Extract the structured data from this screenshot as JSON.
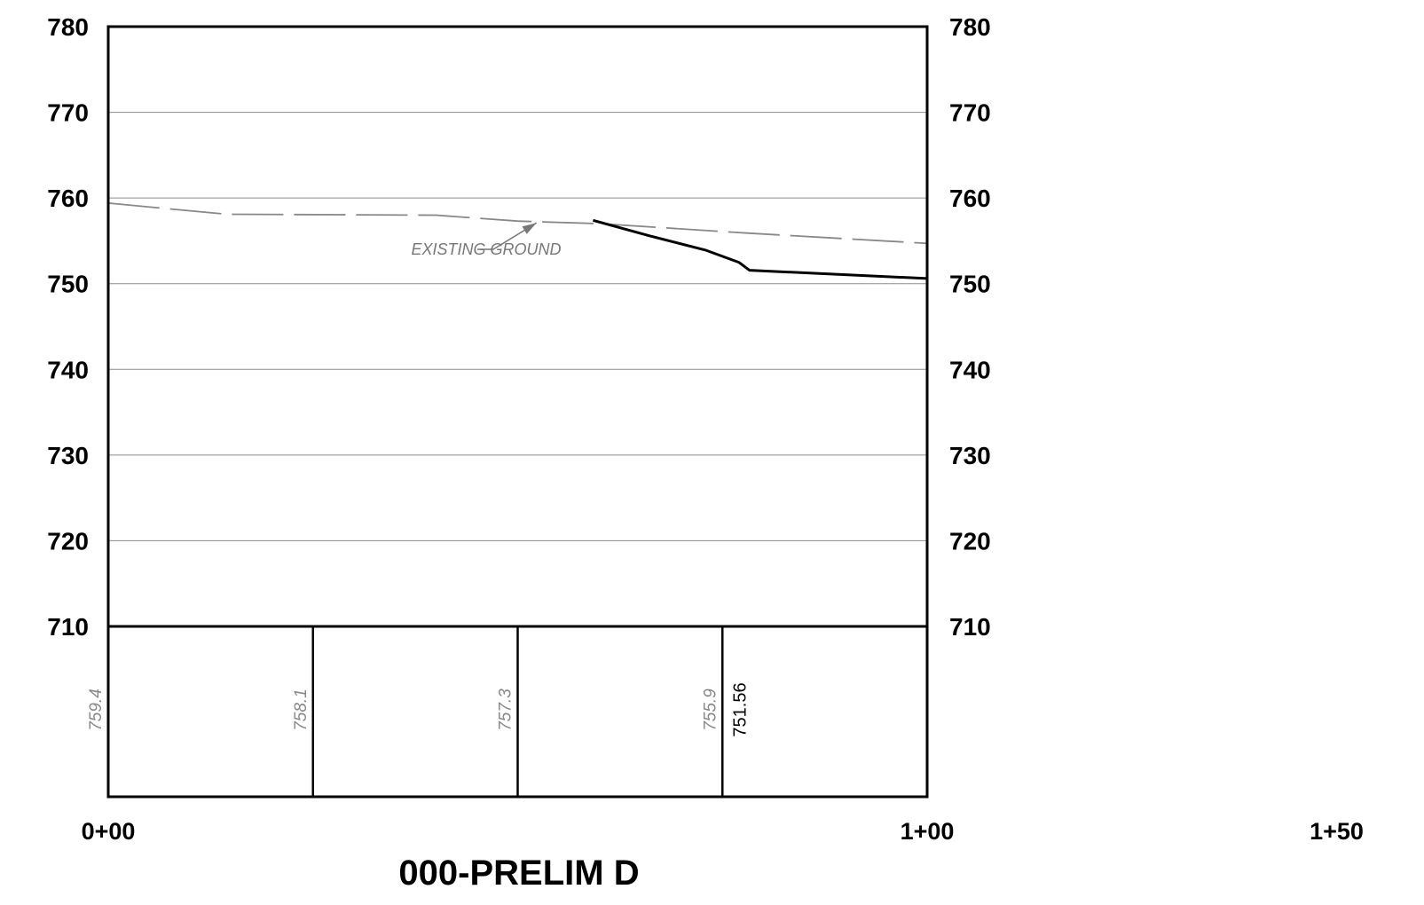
{
  "chart_data": {
    "type": "line",
    "title": "000-PRELIM D",
    "x_ticks": [
      "0+00",
      "1+00",
      "1+50"
    ],
    "y_ticks": [
      780,
      770,
      760,
      750,
      740,
      730,
      720,
      710
    ],
    "ylim": [
      710,
      780
    ],
    "xlim": [
      0,
      100
    ],
    "grid": true,
    "annotation": "EXISTING GROUND",
    "series": [
      {
        "name": "EXISTING GROUND",
        "style": "dashed",
        "color": "#888888",
        "x": [
          0,
          14.5,
          40,
          50,
          60,
          78,
          100
        ],
        "y": [
          759.4,
          758.1,
          758.0,
          757.3,
          757.0,
          755.9,
          754.7
        ]
      },
      {
        "style": "solid",
        "color": "#000000",
        "x": [
          59.2,
          66,
          73,
          77,
          78.3,
          100
        ],
        "y": [
          757.4,
          755.6,
          753.9,
          752.5,
          751.56,
          750.6
        ]
      }
    ],
    "elevation_table": {
      "existing": [
        {
          "station": 0,
          "value": "759.4"
        },
        {
          "station": 25,
          "value": "758.1"
        },
        {
          "station": 50,
          "value": "757.3"
        },
        {
          "station": 75,
          "value": "755.9"
        }
      ],
      "proposed": [
        {
          "station": 75,
          "value": "751.56"
        }
      ]
    }
  }
}
